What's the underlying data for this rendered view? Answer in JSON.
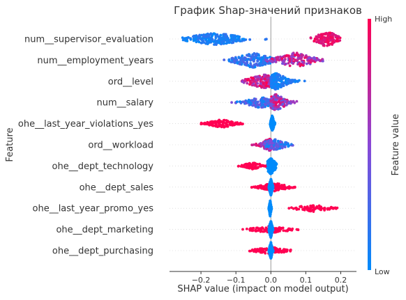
{
  "chart_data": {
    "type": "scatter",
    "subtype": "shap-beeswarm",
    "title": "График Shap-значений признаков",
    "xlabel": "SHAP value (impact on model output)",
    "ylabel": "Feature",
    "xlim": [
      -0.29,
      0.245
    ],
    "xticks": [
      {
        "value": -0.2,
        "label": "−0.2"
      },
      {
        "value": -0.1,
        "label": "−0.1"
      },
      {
        "value": 0.0,
        "label": "0.0"
      },
      {
        "value": 0.1,
        "label": "0.1"
      },
      {
        "value": 0.2,
        "label": "0.2"
      }
    ],
    "grid": false,
    "colorbar": {
      "label": "Feature value",
      "high_label": "High",
      "low_label": "Low",
      "low_color": "#008bfb",
      "mid_color": "#8a47d6",
      "high_color": "#ff0052"
    },
    "features": [
      {
        "name": "num__supervisor_evaluation",
        "clusters": [
          {
            "from": -0.265,
            "to": -0.01,
            "center": -0.16,
            "count": 220,
            "width": 0.05,
            "value_low": 0.0,
            "value_high": 0.2,
            "maxh": 9
          },
          {
            "from": 0.1,
            "to": 0.22,
            "center": 0.16,
            "count": 150,
            "width": 0.018,
            "value_low": 0.8,
            "value_high": 1.0,
            "maxh": 11
          }
        ]
      },
      {
        "name": "num__employment_years",
        "clusters": [
          {
            "from": -0.15,
            "to": 0.02,
            "center": -0.05,
            "count": 200,
            "width": 0.04,
            "value_low": 0.0,
            "value_high": 0.3,
            "maxh": 11
          },
          {
            "from": -0.02,
            "to": 0.15,
            "center": 0.07,
            "count": 180,
            "width": 0.04,
            "value_low": 0.4,
            "value_high": 1.0,
            "maxh": 11
          }
        ]
      },
      {
        "name": "ord__level",
        "clusters": [
          {
            "from": -0.15,
            "to": 0.0,
            "center": -0.02,
            "count": 170,
            "width": 0.03,
            "value_low": 0.5,
            "value_high": 1.0,
            "maxh": 10
          },
          {
            "from": 0.0,
            "to": 0.11,
            "center": 0.015,
            "count": 200,
            "width": 0.03,
            "value_low": 0.0,
            "value_high": 0.2,
            "maxh": 12
          }
        ]
      },
      {
        "name": "num__salary",
        "clusters": [
          {
            "from": -0.13,
            "to": 0.0,
            "center": -0.03,
            "count": 150,
            "width": 0.04,
            "value_low": 0.0,
            "value_high": 0.45,
            "maxh": 8
          },
          {
            "from": 0.0,
            "to": 0.09,
            "center": 0.015,
            "count": 190,
            "width": 0.025,
            "value_low": 0.3,
            "value_high": 1.0,
            "maxh": 12
          }
        ]
      },
      {
        "name": "ohe__last_year_violations_yes",
        "clusters": [
          {
            "from": -0.2,
            "to": -0.08,
            "center": -0.14,
            "count": 110,
            "width": 0.04,
            "value_low": 1.0,
            "value_high": 1.0,
            "maxh": 6
          },
          {
            "from": -0.002,
            "to": 0.012,
            "center": 0.004,
            "count": 200,
            "width": 0.004,
            "value_low": 0.0,
            "value_high": 0.0,
            "maxh": 12
          }
        ]
      },
      {
        "name": "ord__workload",
        "clusters": [
          {
            "from": -0.07,
            "to": 0.0,
            "center": -0.005,
            "count": 130,
            "width": 0.02,
            "value_low": 0.5,
            "value_high": 1.0,
            "maxh": 9
          },
          {
            "from": -0.02,
            "to": 0.095,
            "center": 0.01,
            "count": 140,
            "width": 0.025,
            "value_low": 0.0,
            "value_high": 0.5,
            "maxh": 8
          }
        ]
      },
      {
        "name": "ohe__dept_technology",
        "clusters": [
          {
            "from": -0.1,
            "to": -0.01,
            "center": -0.05,
            "count": 80,
            "width": 0.02,
            "value_low": 1.0,
            "value_high": 1.0,
            "maxh": 5
          },
          {
            "from": -0.01,
            "to": 0.035,
            "center": 0.0,
            "count": 200,
            "width": 0.008,
            "value_low": 0.0,
            "value_high": 0.0,
            "maxh": 12
          }
        ]
      },
      {
        "name": "ohe__dept_sales",
        "clusters": [
          {
            "from": -0.06,
            "to": 0.07,
            "center": 0.01,
            "count": 140,
            "width": 0.03,
            "value_low": 1.0,
            "value_high": 1.0,
            "maxh": 6
          },
          {
            "from": -0.006,
            "to": 0.008,
            "center": 0.0,
            "count": 200,
            "width": 0.003,
            "value_low": 0.0,
            "value_high": 0.0,
            "maxh": 12
          }
        ]
      },
      {
        "name": "ohe__last_year_promo_yes",
        "clusters": [
          {
            "from": -0.006,
            "to": 0.002,
            "center": -0.002,
            "count": 200,
            "width": 0.002,
            "value_low": 0.0,
            "value_high": 0.0,
            "maxh": 12
          },
          {
            "from": 0.045,
            "to": 0.2,
            "center": 0.12,
            "count": 90,
            "width": 0.035,
            "value_low": 1.0,
            "value_high": 1.0,
            "maxh": 5
          }
        ]
      },
      {
        "name": "ohe__dept_marketing",
        "clusters": [
          {
            "from": -0.085,
            "to": 0.085,
            "center": 0.0,
            "count": 100,
            "width": 0.04,
            "value_low": 1.0,
            "value_high": 1.0,
            "maxh": 5
          },
          {
            "from": -0.006,
            "to": 0.008,
            "center": 0.0,
            "count": 200,
            "width": 0.003,
            "value_low": 0.0,
            "value_high": 0.0,
            "maxh": 12
          }
        ]
      },
      {
        "name": "ohe__dept_purchasing",
        "clusters": [
          {
            "from": -0.065,
            "to": 0.08,
            "center": 0.0,
            "count": 90,
            "width": 0.035,
            "value_low": 1.0,
            "value_high": 1.0,
            "maxh": 5
          },
          {
            "from": -0.006,
            "to": 0.008,
            "center": 0.0,
            "count": 200,
            "width": 0.003,
            "value_low": 0.0,
            "value_high": 0.0,
            "maxh": 12
          }
        ]
      }
    ]
  }
}
